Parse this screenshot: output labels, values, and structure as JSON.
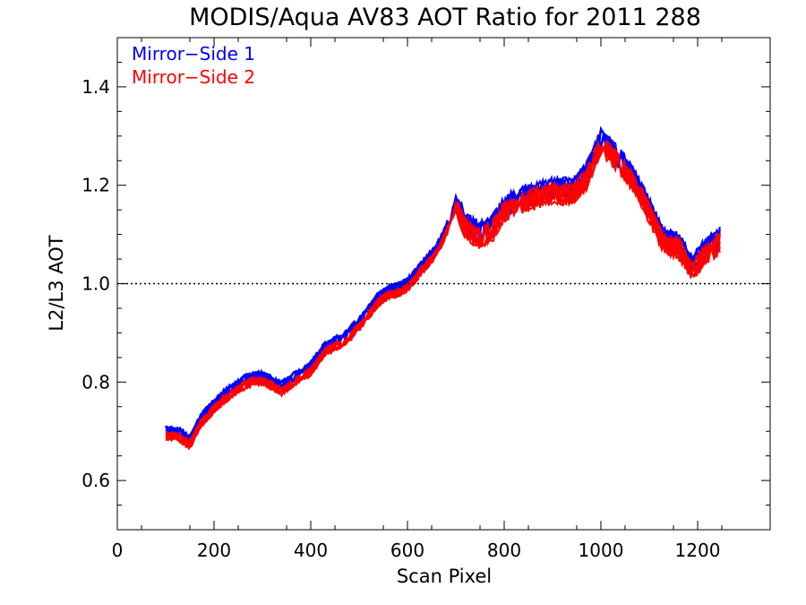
{
  "chart_data": {
    "type": "line",
    "title": "MODIS/Aqua AV83 AOT Ratio for 2011 288",
    "xlabel": "Scan Pixel",
    "ylabel": "L2/L3 AOT",
    "xlim": [
      0,
      1350
    ],
    "ylim": [
      0.5,
      1.5
    ],
    "xticks": [
      0,
      200,
      400,
      600,
      800,
      1000,
      1200
    ],
    "xtick_labels": [
      "0",
      "200",
      "400",
      "600",
      "800",
      "1000",
      "1200"
    ],
    "yticks": [
      0.6,
      0.8,
      1.0,
      1.2,
      1.4
    ],
    "ytick_labels": [
      "0.6",
      "0.8",
      "1.0",
      "1.2",
      "1.4"
    ],
    "reference_line": {
      "y": 1.0,
      "style": "dotted"
    },
    "legend_position": "top-left",
    "grid": false,
    "series": [
      {
        "name": "Mirror−Side 1",
        "color": "#0000ff",
        "line_count": 10
      },
      {
        "name": "Mirror−Side 2",
        "color": "#ff0000",
        "line_count": 10
      }
    ],
    "x": [
      100,
      130,
      150,
      170,
      200,
      230,
      260,
      280,
      300,
      340,
      370,
      400,
      430,
      470,
      500,
      540,
      560,
      580,
      600,
      630,
      660,
      690,
      700,
      720,
      750,
      780,
      800,
      830,
      860,
      900,
      940,
      970,
      1000,
      1020,
      1050,
      1080,
      1110,
      1130,
      1160,
      1190,
      1210,
      1240,
      1250
    ],
    "profile": [
      0.7,
      0.695,
      0.68,
      0.72,
      0.755,
      0.78,
      0.8,
      0.81,
      0.81,
      0.79,
      0.81,
      0.83,
      0.87,
      0.89,
      0.92,
      0.97,
      0.985,
      0.99,
      1.0,
      1.035,
      1.07,
      1.13,
      1.165,
      1.12,
      1.1,
      1.12,
      1.155,
      1.17,
      1.18,
      1.19,
      1.19,
      1.22,
      1.29,
      1.27,
      1.24,
      1.19,
      1.13,
      1.09,
      1.08,
      1.035,
      1.06,
      1.085,
      1.095
    ]
  }
}
